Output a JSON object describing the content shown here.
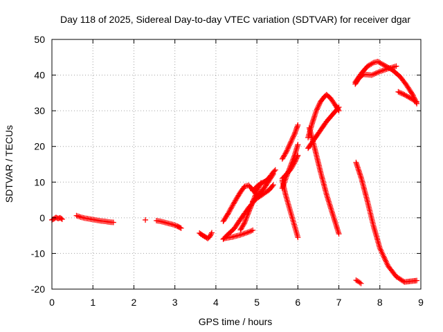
{
  "chart_data": {
    "type": "scatter",
    "title": "Day 118 of 2025, Sidereal Day-to-day VTEC variation (SDTVAR) for receiver dgar",
    "xlabel": "GPS time / hours",
    "ylabel": "SDTVAR / TECUs",
    "xlim": [
      0,
      9
    ],
    "ylim": [
      -20,
      50
    ],
    "xticks": [
      "0",
      "1",
      "2",
      "3",
      "4",
      "5",
      "6",
      "7",
      "8",
      "9"
    ],
    "yticks": [
      "-20",
      "-10",
      "0",
      "10",
      "20",
      "30",
      "40",
      "50"
    ],
    "grid": true,
    "marker": "+",
    "color": "#ff0000",
    "series": [
      {
        "name": "seg01",
        "x": [
          0.0,
          0.05,
          0.1,
          0.15,
          0.2,
          0.25
        ],
        "y": [
          -0.6,
          -0.3,
          0.1,
          -0.2,
          0.0,
          -0.4
        ]
      },
      {
        "name": "seg02",
        "x": [
          0.6,
          0.7,
          0.8,
          0.9,
          1.0,
          1.1,
          1.2,
          1.3,
          1.4,
          1.5
        ],
        "y": [
          0.6,
          0.2,
          -0.1,
          -0.3,
          -0.5,
          -0.7,
          -0.9,
          -1.0,
          -1.2,
          -1.3
        ]
      },
      {
        "name": "seg03",
        "x": [
          2.28
        ],
        "y": [
          -0.6
        ]
      },
      {
        "name": "seg04",
        "x": [
          2.55,
          2.65,
          2.75,
          2.85,
          2.95,
          3.05,
          3.15
        ],
        "y": [
          -0.8,
          -1.0,
          -1.3,
          -1.6,
          -1.9,
          -2.3,
          -2.9
        ]
      },
      {
        "name": "seg05",
        "x": [
          3.6,
          3.65,
          3.7,
          3.75,
          3.8,
          3.85,
          3.9
        ],
        "y": [
          -4.3,
          -4.7,
          -5.1,
          -5.4,
          -5.8,
          -5.3,
          -4.2
        ]
      },
      {
        "name": "seg06",
        "x": [
          4.18,
          4.3,
          4.4,
          4.5,
          4.6,
          4.7,
          4.8,
          4.85,
          4.9,
          5.0
        ],
        "y": [
          -1.0,
          1.2,
          3.3,
          5.3,
          7.2,
          8.8,
          9.1,
          8.5,
          7.8,
          6.5
        ]
      },
      {
        "name": "seg07",
        "x": [
          4.18,
          4.3,
          4.45,
          4.6,
          4.8,
          5.0,
          5.2,
          5.4
        ],
        "y": [
          -6.0,
          -4.6,
          -3.0,
          -0.4,
          2.8,
          5.6,
          8.7,
          12.3
        ]
      },
      {
        "name": "seg08",
        "x": [
          4.2,
          4.4,
          4.6,
          4.8,
          4.9
        ],
        "y": [
          -5.8,
          -5.4,
          -4.8,
          -4.0,
          -3.5
        ]
      },
      {
        "name": "seg09",
        "x": [
          4.6,
          4.7,
          4.8,
          4.9,
          5.0,
          5.1
        ],
        "y": [
          -3.4,
          -1.4,
          1.6,
          4.4,
          7.4,
          9.8
        ]
      },
      {
        "name": "seg10",
        "x": [
          4.9,
          5.0,
          5.1,
          5.2,
          5.3,
          5.4,
          5.45
        ],
        "y": [
          7.6,
          8.8,
          9.6,
          10.2,
          11.2,
          12.8,
          13.4
        ]
      },
      {
        "name": "seg11",
        "x": [
          4.9,
          5.1,
          5.3,
          5.4
        ],
        "y": [
          4.6,
          6.2,
          7.8,
          9.2
        ]
      },
      {
        "name": "seg12",
        "x": [
          5.62,
          5.72,
          5.82,
          5.92,
          6.0
        ],
        "y": [
          8.3,
          11.5,
          14.5,
          17.5,
          20.5
        ]
      },
      {
        "name": "seg13",
        "x": [
          5.62,
          5.72,
          5.82,
          5.92,
          6.0
        ],
        "y": [
          16.5,
          18.5,
          21.0,
          23.5,
          26.0
        ]
      },
      {
        "name": "seg14",
        "x": [
          5.62,
          5.72,
          5.82,
          5.92,
          6.0
        ],
        "y": [
          11.0,
          12.2,
          13.5,
          15.5,
          17.5
        ]
      },
      {
        "name": "seg15",
        "x": [
          5.62,
          5.7,
          5.8,
          5.9,
          6.0
        ],
        "y": [
          10.5,
          6.5,
          2.5,
          -1.5,
          -5.5
        ]
      },
      {
        "name": "seg16",
        "x": [
          6.25,
          6.35,
          6.45,
          6.55,
          6.65,
          6.7,
          6.8,
          6.9,
          7.0
        ],
        "y": [
          22.5,
          26.5,
          30.0,
          32.5,
          34.0,
          34.5,
          33.5,
          31.8,
          30.0
        ]
      },
      {
        "name": "seg17",
        "x": [
          6.25,
          6.4,
          6.55,
          6.7,
          6.85,
          7.0
        ],
        "y": [
          19.5,
          22.0,
          24.5,
          27.0,
          29.0,
          31.0
        ]
      },
      {
        "name": "seg18",
        "x": [
          6.28,
          6.4,
          6.55,
          6.7,
          6.85,
          7.0
        ],
        "y": [
          25.2,
          20.0,
          13.0,
          6.5,
          1.0,
          -4.5
        ]
      },
      {
        "name": "seg19",
        "x": [
          7.4,
          7.5,
          7.6,
          7.8,
          8.0,
          8.2,
          8.4
        ],
        "y": [
          37.5,
          39.3,
          40.2,
          40.0,
          41.0,
          41.8,
          42.5
        ]
      },
      {
        "name": "seg20",
        "x": [
          7.4,
          7.55,
          7.7,
          7.85,
          7.95,
          8.1,
          8.3,
          8.5,
          8.65,
          8.8,
          8.9
        ],
        "y": [
          38.0,
          40.5,
          42.5,
          43.5,
          43.8,
          42.8,
          41.5,
          39.5,
          37.2,
          34.5,
          32.0
        ]
      },
      {
        "name": "seg21",
        "x": [
          8.45,
          8.6,
          8.75,
          8.9
        ],
        "y": [
          35.3,
          34.5,
          33.5,
          32.5
        ]
      },
      {
        "name": "seg22",
        "x": [
          7.42,
          7.55,
          7.7,
          7.85,
          8.0,
          8.2,
          8.4,
          8.6,
          8.75,
          8.9
        ],
        "y": [
          15.5,
          11.0,
          4.5,
          -2.5,
          -8.5,
          -13.5,
          -16.5,
          -18.0,
          -17.8,
          -17.6
        ]
      },
      {
        "name": "seg23",
        "x": [
          7.42,
          7.48,
          7.54
        ],
        "y": [
          -17.5,
          -17.9,
          -18.4
        ]
      }
    ]
  }
}
